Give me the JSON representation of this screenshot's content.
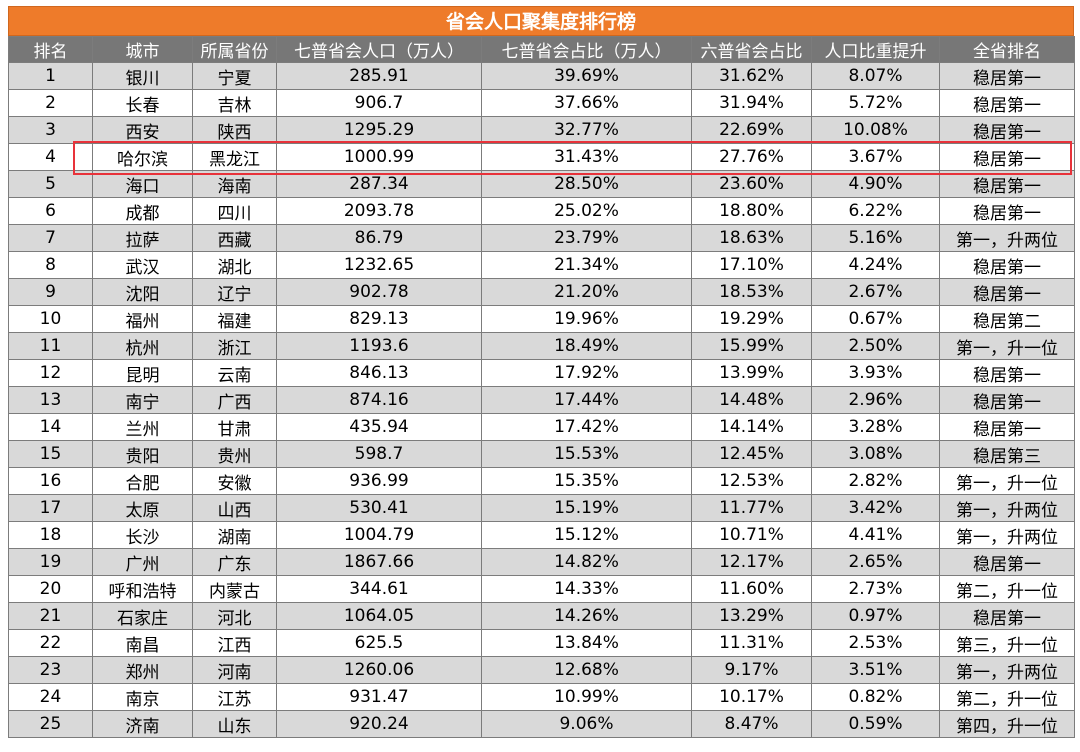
{
  "title": "省会人口聚集度排行榜",
  "headers": [
    "排名",
    "城市",
    "所属省份",
    "七普省会人口（万人）",
    "七普省会占比（万人）",
    "六普省会占比",
    "人口比重提升",
    "全省排名"
  ],
  "rows": [
    [
      "1",
      "银川",
      "宁夏",
      "285.91",
      "39.69%",
      "31.62%",
      "8.07%",
      "稳居第一"
    ],
    [
      "2",
      "长春",
      "吉林",
      "906.7",
      "37.66%",
      "31.94%",
      "5.72%",
      "稳居第一"
    ],
    [
      "3",
      "西安",
      "陕西",
      "1295.29",
      "32.77%",
      "22.69%",
      "10.08%",
      "稳居第一"
    ],
    [
      "4",
      "哈尔滨",
      "黑龙江",
      "1000.99",
      "31.43%",
      "27.76%",
      "3.67%",
      "稳居第一"
    ],
    [
      "5",
      "海口",
      "海南",
      "287.34",
      "28.50%",
      "23.60%",
      "4.90%",
      "稳居第一"
    ],
    [
      "6",
      "成都",
      "四川",
      "2093.78",
      "25.02%",
      "18.80%",
      "6.22%",
      "稳居第一"
    ],
    [
      "7",
      "拉萨",
      "西藏",
      "86.79",
      "23.79%",
      "18.63%",
      "5.16%",
      "第一，升两位"
    ],
    [
      "8",
      "武汉",
      "湖北",
      "1232.65",
      "21.34%",
      "17.10%",
      "4.24%",
      "稳居第一"
    ],
    [
      "9",
      "沈阳",
      "辽宁",
      "902.78",
      "21.20%",
      "18.53%",
      "2.67%",
      "稳居第一"
    ],
    [
      "10",
      "福州",
      "福建",
      "829.13",
      "19.96%",
      "19.29%",
      "0.67%",
      "稳居第二"
    ],
    [
      "11",
      "杭州",
      "浙江",
      "1193.6",
      "18.49%",
      "15.99%",
      "2.50%",
      "第一，升一位"
    ],
    [
      "12",
      "昆明",
      "云南",
      "846.13",
      "17.92%",
      "13.99%",
      "3.93%",
      "稳居第一"
    ],
    [
      "13",
      "南宁",
      "广西",
      "874.16",
      "17.44%",
      "14.48%",
      "2.96%",
      "稳居第一"
    ],
    [
      "14",
      "兰州",
      "甘肃",
      "435.94",
      "17.42%",
      "14.14%",
      "3.28%",
      "稳居第一"
    ],
    [
      "15",
      "贵阳",
      "贵州",
      "598.7",
      "15.53%",
      "12.45%",
      "3.08%",
      "稳居第三"
    ],
    [
      "16",
      "合肥",
      "安徽",
      "936.99",
      "15.35%",
      "12.53%",
      "2.82%",
      "第一，升一位"
    ],
    [
      "17",
      "太原",
      "山西",
      "530.41",
      "15.19%",
      "11.77%",
      "3.42%",
      "第一，升两位"
    ],
    [
      "18",
      "长沙",
      "湖南",
      "1004.79",
      "15.12%",
      "10.71%",
      "4.41%",
      "第一，升两位"
    ],
    [
      "19",
      "广州",
      "广东",
      "1867.66",
      "14.82%",
      "12.17%",
      "2.65%",
      "稳居第一"
    ],
    [
      "20",
      "呼和浩特",
      "内蒙古",
      "344.61",
      "14.33%",
      "11.60%",
      "2.73%",
      "第二，升一位"
    ],
    [
      "21",
      "石家庄",
      "河北",
      "1064.05",
      "14.26%",
      "13.29%",
      "0.97%",
      "稳居第一"
    ],
    [
      "22",
      "南昌",
      "江西",
      "625.5",
      "13.84%",
      "11.31%",
      "2.53%",
      "第三，升一位"
    ],
    [
      "23",
      "郑州",
      "河南",
      "1260.06",
      "12.68%",
      "9.17%",
      "3.51%",
      "第一，升两位"
    ],
    [
      "24",
      "南京",
      "江苏",
      "931.47",
      "10.99%",
      "10.17%",
      "0.82%",
      "第二，升一位"
    ],
    [
      "25",
      "济南",
      "山东",
      "920.24",
      "9.06%",
      "8.47%",
      "0.59%",
      "第四，升一位"
    ]
  ],
  "highlighted_rank": "4",
  "colors": {
    "title_bg": "#ee7b2a",
    "header_bg": "#777777",
    "alt_row": "#d9d9d9",
    "highlight_border": "#e8323a"
  }
}
